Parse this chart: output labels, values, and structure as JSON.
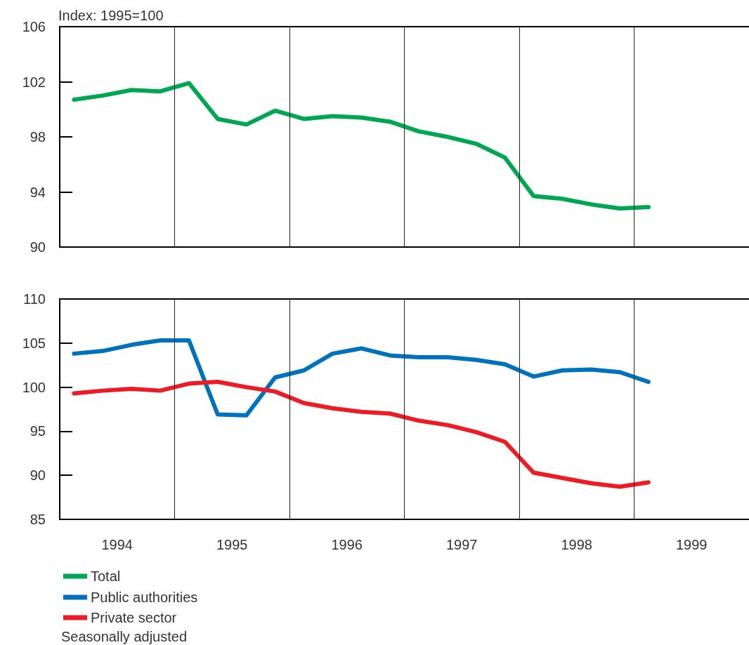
{
  "chart_data": [
    {
      "type": "line",
      "ylabel": "Index: 1995=100",
      "x": [
        1994.125,
        1994.375,
        1994.625,
        1994.875,
        1995.125,
        1995.375,
        1995.625,
        1995.875,
        1996.125,
        1996.375,
        1996.625,
        1996.875,
        1997.125,
        1997.375,
        1997.625,
        1997.875,
        1998.125,
        1998.375,
        1998.625,
        1998.875,
        1999.125
      ],
      "series": [
        {
          "name": "Total",
          "color": "#00a651",
          "values": [
            100.7,
            101.0,
            101.4,
            101.3,
            101.9,
            99.3,
            98.9,
            99.9,
            99.3,
            99.5,
            99.4,
            99.1,
            98.4,
            98.0,
            97.5,
            96.5,
            93.7,
            93.5,
            93.1,
            92.8,
            92.9
          ]
        }
      ],
      "xlim": [
        1994,
        2000
      ],
      "xticks": [
        {
          "value": 1994,
          "label": null
        },
        {
          "value": 1995,
          "label": null
        },
        {
          "value": 1996,
          "label": null
        },
        {
          "value": 1997,
          "label": null
        },
        {
          "value": 1998,
          "label": null
        },
        {
          "value": 1999,
          "label": null
        },
        {
          "value": 2000,
          "label": null
        }
      ],
      "ylim": [
        90,
        106
      ],
      "yticks": [
        90,
        94,
        98,
        102,
        106
      ],
      "grid": "x",
      "legend": "bottom left",
      "tick_labels": "y",
      "marker": "none",
      "line_style": "solid"
    },
    {
      "type": "line",
      "annotations": [
        "Seasonally adjusted"
      ],
      "x": [
        1994.125,
        1994.375,
        1994.625,
        1994.875,
        1995.125,
        1995.375,
        1995.625,
        1995.875,
        1996.125,
        1996.375,
        1996.625,
        1996.875,
        1997.125,
        1997.375,
        1997.625,
        1997.875,
        1998.125,
        1998.375,
        1998.625,
        1998.875,
        1999.125
      ],
      "series": [
        {
          "name": "Public authorities",
          "color": "#0072bc",
          "values": [
            103.8,
            104.1,
            104.8,
            105.3,
            105.3,
            96.9,
            96.8,
            101.1,
            101.9,
            103.8,
            104.4,
            103.6,
            103.4,
            103.4,
            103.1,
            102.6,
            101.2,
            101.9,
            102.0,
            101.7,
            100.6
          ]
        },
        {
          "name": "Private sector",
          "color": "#ed1c24",
          "values": [
            99.3,
            99.6,
            99.8,
            99.6,
            100.4,
            100.6,
            100.0,
            99.5,
            98.2,
            97.6,
            97.2,
            97.0,
            96.2,
            95.7,
            94.9,
            93.8,
            90.3,
            89.7,
            89.1,
            88.7,
            89.2
          ]
        }
      ],
      "xlim": [
        1994,
        2000
      ],
      "xticks": [
        {
          "value": 1994,
          "label": null
        },
        {
          "value": 1994.5,
          "label": "1994"
        },
        {
          "value": 1995,
          "label": null
        },
        {
          "value": 1995.5,
          "label": "1995"
        },
        {
          "value": 1996,
          "label": null
        },
        {
          "value": 1996.5,
          "label": "1996"
        },
        {
          "value": 1997,
          "label": null
        },
        {
          "value": 1997.5,
          "label": "1997"
        },
        {
          "value": 1998,
          "label": null
        },
        {
          "value": 1998.5,
          "label": "1998"
        },
        {
          "value": 1999,
          "label": null
        },
        {
          "value": 1999.5,
          "label": "1999"
        },
        {
          "value": 2000,
          "label": null
        }
      ],
      "ylim": [
        85,
        110
      ],
      "yticks": [
        85,
        90,
        95,
        100,
        105,
        110
      ],
      "grid": "x",
      "legend": "bottom left",
      "marker": "none",
      "line_style": "solid"
    }
  ]
}
